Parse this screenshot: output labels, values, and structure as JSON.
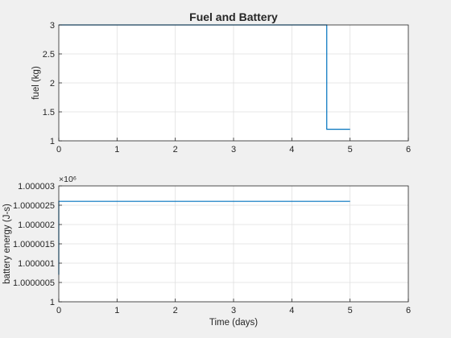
{
  "chart_data": [
    {
      "type": "line",
      "title": "Fuel and Battery",
      "xlabel": "",
      "ylabel": "fuel (kg)",
      "xlim": [
        0,
        6
      ],
      "ylim": [
        1,
        3
      ],
      "x_ticks": [
        "0",
        "1",
        "2",
        "3",
        "4",
        "5",
        "6"
      ],
      "y_ticks": [
        "1",
        "1.5",
        "2",
        "2.5",
        "3"
      ],
      "grid": true,
      "line_color": "#0072bd",
      "series": [
        {
          "x": [
            0,
            4.6,
            4.6,
            5.0
          ],
          "y": [
            3,
            3,
            1.2,
            1.2
          ]
        }
      ]
    },
    {
      "type": "line",
      "title": "",
      "xlabel": "Time (days)",
      "ylabel": "battery energy (J-s)",
      "xlim": [
        0,
        6
      ],
      "ylim": [
        1,
        1.000003
      ],
      "exponent_label": "×10⁶",
      "x_ticks": [
        "0",
        "1",
        "2",
        "3",
        "4",
        "5",
        "6"
      ],
      "y_ticks": [
        "1",
        "1.0000005",
        "1.000001",
        "1.0000015",
        "1.000002",
        "1.0000025",
        "1.000003"
      ],
      "grid": true,
      "line_color": "#0072bd",
      "series": [
        {
          "x": [
            0,
            0,
            5.0
          ],
          "y": [
            1.0000007,
            1.0000026,
            1.0000026
          ]
        }
      ]
    }
  ]
}
